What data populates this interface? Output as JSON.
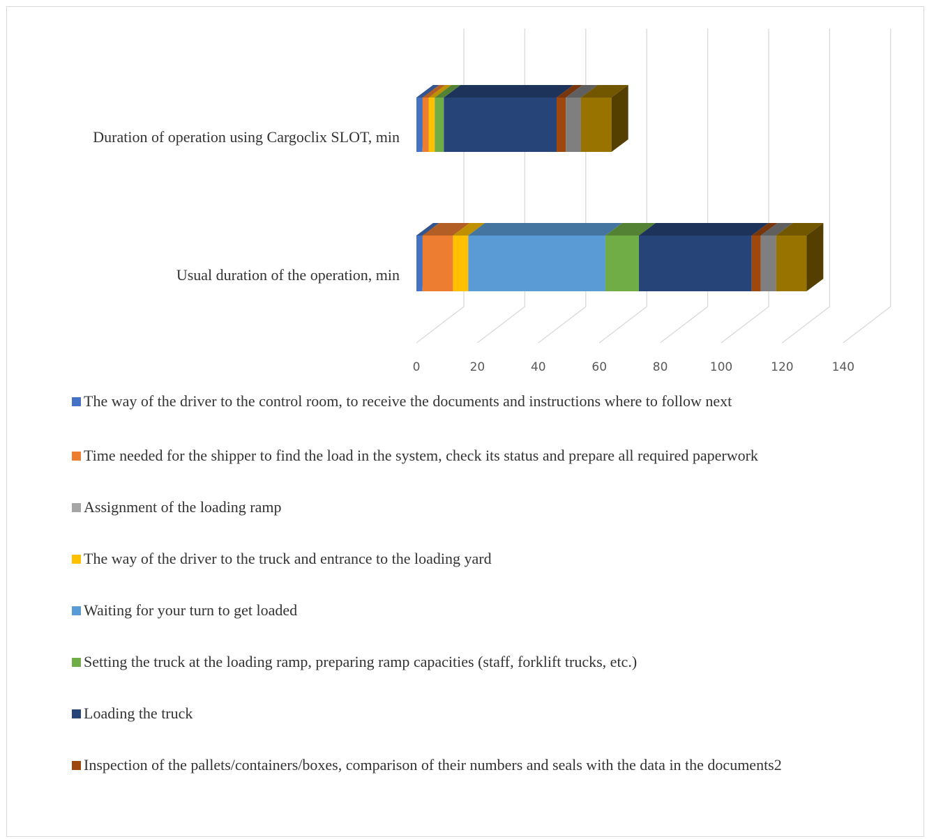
{
  "chart_data": {
    "type": "bar",
    "orientation": "horizontal",
    "stacked": true,
    "style": "3d",
    "categories": [
      "Duration of operation using Cargoclix SLOT, min",
      "Usual duration of the operation, min"
    ],
    "xlim": [
      0,
      140
    ],
    "xticks": [
      "0",
      "20",
      "40",
      "60",
      "80",
      "100",
      "120",
      "140"
    ],
    "grid": true,
    "legend_position": "bottom",
    "series": [
      {
        "name": "The way of the driver to the control room, to receive the documents and instructions where to follow next",
        "color": "#4472c4",
        "values": [
          2,
          2
        ]
      },
      {
        "name": "Time needed for the shipper to find the load in the system, check its status and prepare all required paperwork",
        "color": "#ed7d31",
        "values": [
          2,
          10
        ]
      },
      {
        "name": "Assignment of the loading ramp",
        "color": "#a5a5a5",
        "values": [
          0,
          0
        ]
      },
      {
        "name": "The way of the driver to the truck and entrance to the loading yard",
        "color": "#ffc000",
        "values": [
          2,
          5
        ]
      },
      {
        "name": "Waiting for your turn to get loaded",
        "color": "#5b9bd5",
        "values": [
          0,
          45
        ]
      },
      {
        "name": "Setting the truck at the loading ramp, preparing ramp capacities (staff, forklift trucks, etc.)",
        "color": "#70ad47",
        "values": [
          3,
          11
        ]
      },
      {
        "name": "Loading the truck",
        "color": "#264478",
        "values": [
          37,
          37
        ]
      },
      {
        "name": "Inspection of the pallets/containers/boxes, comparison of their numbers and seals with the data in the documents2",
        "color": "#9e480e",
        "values": [
          3,
          3
        ]
      },
      {
        "name": "",
        "color": "#7f7f7f",
        "values": [
          5,
          5
        ]
      },
      {
        "name": "",
        "color": "#997300",
        "values": [
          10,
          10
        ]
      }
    ]
  }
}
